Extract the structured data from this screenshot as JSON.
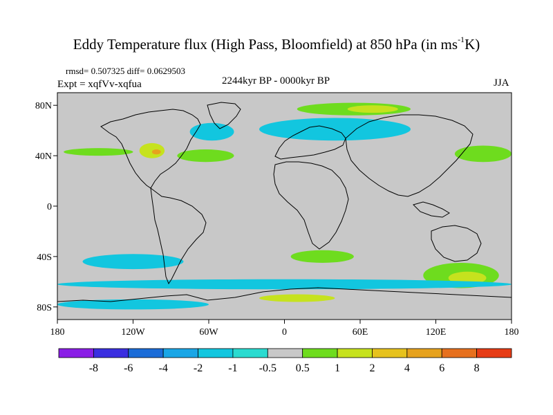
{
  "title_main": "Eddy Temperature flux (High Pass, Bloomfield) at 850 hPa (in ms",
  "title_sup": "-1",
  "title_end": "K)",
  "stats": "rmsd= 0.507325 diff= 0.0629503",
  "expt": "Expt = xqfVv-xqfua",
  "period": "2244kyr BP - 0000kyr BP",
  "season": "JJA",
  "map": {
    "lon_range": [
      -180,
      180
    ],
    "lat_range": [
      -90,
      90
    ],
    "background_color": "#c8c8c8",
    "coastline_color": "#000000",
    "lon_ticks": [
      {
        "value": -180,
        "label": "180"
      },
      {
        "value": -120,
        "label": "120W"
      },
      {
        "value": -60,
        "label": "60W"
      },
      {
        "value": 0,
        "label": "0"
      },
      {
        "value": 60,
        "label": "60E"
      },
      {
        "value": 120,
        "label": "120E"
      },
      {
        "value": 180,
        "label": "180"
      }
    ],
    "lat_ticks": [
      {
        "value": 80,
        "label": "80N"
      },
      {
        "value": 40,
        "label": "40N"
      },
      {
        "value": 0,
        "label": "0"
      },
      {
        "value": -40,
        "label": "40S"
      },
      {
        "value": -80,
        "label": "80S"
      }
    ],
    "anomaly_regions": [
      {
        "name": "north-atlantic-pos",
        "lon": [
          -85,
          -40
        ],
        "lat": [
          35,
          45
        ],
        "level": 1
      },
      {
        "name": "north-pacific-pos",
        "lon": [
          -175,
          -120
        ],
        "lat": [
          40,
          46
        ],
        "level": 1
      },
      {
        "name": "north-america-pos",
        "lon": [
          -115,
          -95
        ],
        "lat": [
          38,
          50
        ],
        "level": 2
      },
      {
        "name": "north-america-core",
        "lon": [
          -105,
          -98
        ],
        "lat": [
          41,
          45
        ],
        "level": 4
      },
      {
        "name": "arctic-siberia-pos",
        "lon": [
          10,
          100
        ],
        "lat": [
          72,
          82
        ],
        "level": 1
      },
      {
        "name": "arctic-siberia-core",
        "lon": [
          50,
          90
        ],
        "lat": [
          74,
          80
        ],
        "level": 2
      },
      {
        "name": "japan-pacific-pos",
        "lon": [
          135,
          180
        ],
        "lat": [
          35,
          48
        ],
        "level": 1
      },
      {
        "name": "eurasia-neg",
        "lon": [
          -20,
          100
        ],
        "lat": [
          52,
          70
        ],
        "level": -1
      },
      {
        "name": "atlantic-neg",
        "lon": [
          -75,
          -40
        ],
        "lat": [
          52,
          66
        ],
        "level": -1
      },
      {
        "name": "south-atlantic-pos",
        "lon": [
          5,
          55
        ],
        "lat": [
          -45,
          -35
        ],
        "level": 1
      },
      {
        "name": "australia-pos",
        "lon": [
          110,
          170
        ],
        "lat": [
          -65,
          -45
        ],
        "level": 1
      },
      {
        "name": "australia-core",
        "lon": [
          130,
          160
        ],
        "lat": [
          -62,
          -52
        ],
        "level": 2
      },
      {
        "name": "south-pacific-neg",
        "lon": [
          -160,
          -80
        ],
        "lat": [
          -50,
          -38
        ],
        "level": -1
      },
      {
        "name": "southern-ocean-neg",
        "lon": [
          -180,
          180
        ],
        "lat": [
          -66,
          -58
        ],
        "level": -1
      },
      {
        "name": "weddell-pos",
        "lon": [
          -20,
          40
        ],
        "lat": [
          -76,
          -70
        ],
        "level": 2
      },
      {
        "name": "ross-neg",
        "lon": [
          -180,
          -60
        ],
        "lat": [
          -82,
          -74
        ],
        "level": -1
      }
    ]
  },
  "colorbar": {
    "colors": [
      "#8a1ee6",
      "#3a2ee0",
      "#1b6cd8",
      "#1aa6e6",
      "#12c6df",
      "#2adbd0",
      "#c8c8c8",
      "#6edc1e",
      "#c6e21e",
      "#e6c21e",
      "#e6a21e",
      "#e6701e",
      "#e63c16"
    ],
    "labels": [
      "-8",
      "-6",
      "-4",
      "-2",
      "-1",
      "-0.5",
      "0.5",
      "1",
      "2",
      "4",
      "6",
      "8"
    ]
  }
}
